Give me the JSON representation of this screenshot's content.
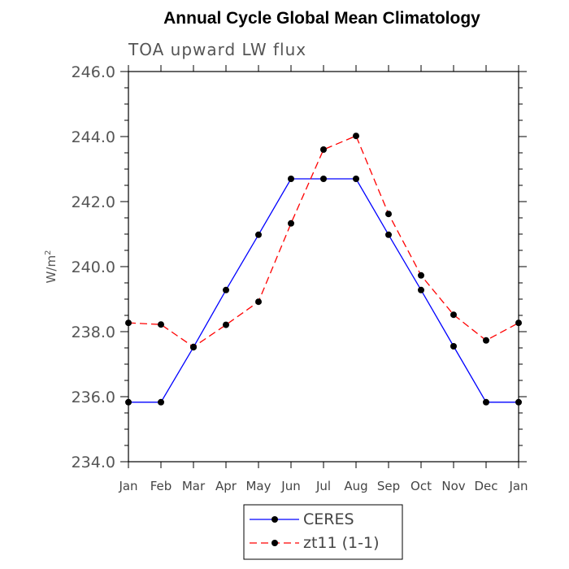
{
  "chart_data": {
    "type": "line",
    "title": "Annual Cycle Global Mean Climatology",
    "subtitle": "TOA upward LW flux",
    "ylabel": "W/m",
    "ylabel_superscript": "2",
    "xlabel": "",
    "categories": [
      "Jan",
      "Feb",
      "Mar",
      "Apr",
      "May",
      "Jun",
      "Jul",
      "Aug",
      "Sep",
      "Oct",
      "Nov",
      "Dec",
      "Jan"
    ],
    "ylim": [
      234.0,
      246.0
    ],
    "yticks": [
      "234.0",
      "236.0",
      "238.0",
      "240.0",
      "242.0",
      "244.0",
      "246.0"
    ],
    "grid": false,
    "legend_position": "bottom",
    "series": [
      {
        "name": "CERES",
        "color": "#0000ff",
        "dash": "solid",
        "values": [
          235.83,
          235.83,
          237.52,
          239.28,
          240.98,
          242.7,
          242.7,
          242.7,
          240.98,
          239.28,
          237.55,
          235.83,
          235.83
        ]
      },
      {
        "name": "zt11 (1-1)",
        "color": "#ff0000",
        "dash": "dashed",
        "values": [
          238.27,
          238.22,
          237.53,
          238.21,
          238.92,
          241.33,
          243.6,
          244.02,
          241.62,
          239.73,
          238.52,
          237.73,
          238.27
        ]
      }
    ]
  }
}
